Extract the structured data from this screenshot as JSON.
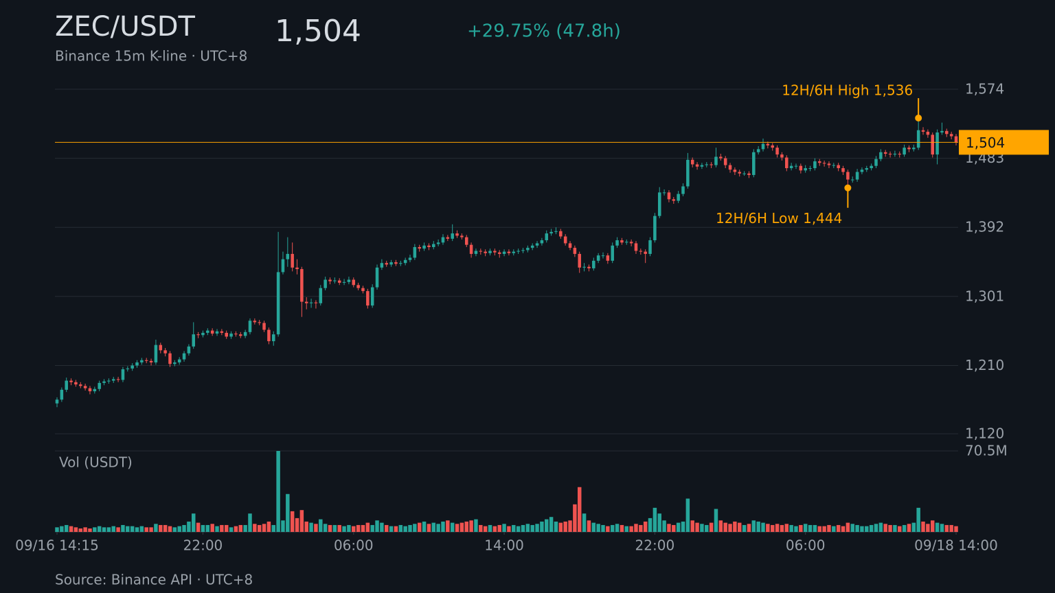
{
  "chart_data": {
    "type": "candlestick",
    "title": "ZEC/USDT",
    "price": {
      "value": 1504,
      "label": "1,504"
    },
    "change": "+29.75% (47.8h)",
    "subtitle": "Binance 15m K-line · UTC+8",
    "source": "Source: Binance API · UTC+8",
    "colors": {
      "up": "#26a69a",
      "down": "#ef5350",
      "accent": "#ffa500"
    },
    "grid": true,
    "ylim": [
      1120,
      1574
    ],
    "yticks": [
      {
        "value": 1120,
        "label": "1,120"
      },
      {
        "value": 1210,
        "label": "1,210"
      },
      {
        "value": 1301,
        "label": "1,301"
      },
      {
        "value": 1392,
        "label": "1,392"
      },
      {
        "value": 1483,
        "label": "1,483"
      },
      {
        "value": 1574,
        "label": "1,574"
      }
    ],
    "xlim": [
      0,
      191
    ],
    "xticks": [
      {
        "value": 0,
        "label": "09/16 14:15"
      },
      {
        "value": 31,
        "label": "22:00"
      },
      {
        "value": 63,
        "label": "06:00"
      },
      {
        "value": 95,
        "label": "14:00"
      },
      {
        "value": 127,
        "label": "22:00"
      },
      {
        "value": 159,
        "label": "06:00"
      },
      {
        "value": 191,
        "label": "09/18 14:00"
      }
    ],
    "y2lim": [
      0,
      70.5
    ],
    "y2ticks": [
      {
        "value": 70.5,
        "label": "70.5M"
      }
    ],
    "annotations": [
      {
        "x": 183,
        "value": 1536,
        "label": "12H/6H High 1,536"
      },
      {
        "x": 168,
        "value": 1444,
        "label": "12H/6H Low 1,444"
      }
    ],
    "candles": [
      [
        1160,
        1168,
        1155,
        1165
      ],
      [
        1165,
        1181,
        1162,
        1178
      ],
      [
        1178,
        1194,
        1175,
        1190
      ],
      [
        1190,
        1193,
        1184,
        1188
      ],
      [
        1188,
        1191,
        1182,
        1185
      ],
      [
        1185,
        1188,
        1180,
        1183
      ],
      [
        1183,
        1186,
        1177,
        1180
      ],
      [
        1180,
        1183,
        1172,
        1176
      ],
      [
        1176,
        1182,
        1173,
        1179
      ],
      [
        1179,
        1190,
        1176,
        1187
      ],
      [
        1187,
        1192,
        1184,
        1189
      ],
      [
        1189,
        1193,
        1186,
        1190
      ],
      [
        1190,
        1195,
        1187,
        1192
      ],
      [
        1192,
        1195,
        1188,
        1191
      ],
      [
        1191,
        1208,
        1188,
        1205
      ],
      [
        1205,
        1209,
        1202,
        1206
      ],
      [
        1206,
        1213,
        1203,
        1210
      ],
      [
        1210,
        1217,
        1207,
        1214
      ],
      [
        1214,
        1220,
        1211,
        1217
      ],
      [
        1217,
        1220,
        1213,
        1216
      ],
      [
        1216,
        1219,
        1210,
        1214
      ],
      [
        1214,
        1244,
        1211,
        1237
      ],
      [
        1237,
        1240,
        1226,
        1230
      ],
      [
        1230,
        1233,
        1222,
        1226
      ],
      [
        1226,
        1229,
        1208,
        1212
      ],
      [
        1212,
        1217,
        1209,
        1214
      ],
      [
        1214,
        1221,
        1211,
        1218
      ],
      [
        1218,
        1229,
        1215,
        1226
      ],
      [
        1226,
        1238,
        1223,
        1235
      ],
      [
        1235,
        1267,
        1232,
        1251
      ],
      [
        1251,
        1254,
        1246,
        1250
      ],
      [
        1250,
        1256,
        1247,
        1253
      ],
      [
        1253,
        1259,
        1250,
        1256
      ],
      [
        1256,
        1259,
        1249,
        1252
      ],
      [
        1252,
        1258,
        1249,
        1255
      ],
      [
        1255,
        1258,
        1250,
        1253
      ],
      [
        1253,
        1256,
        1245,
        1248
      ],
      [
        1248,
        1255,
        1245,
        1252
      ],
      [
        1252,
        1255,
        1248,
        1251
      ],
      [
        1251,
        1254,
        1246,
        1249
      ],
      [
        1249,
        1257,
        1246,
        1254
      ],
      [
        1254,
        1272,
        1251,
        1269
      ],
      [
        1269,
        1272,
        1264,
        1267
      ],
      [
        1267,
        1270,
        1263,
        1266
      ],
      [
        1266,
        1269,
        1254,
        1257
      ],
      [
        1257,
        1260,
        1238,
        1242
      ],
      [
        1242,
        1255,
        1236,
        1251
      ],
      [
        1251,
        1386,
        1248,
        1333
      ],
      [
        1333,
        1360,
        1330,
        1350
      ],
      [
        1350,
        1379,
        1340,
        1357
      ],
      [
        1357,
        1372,
        1334,
        1339
      ],
      [
        1339,
        1350,
        1330,
        1337
      ],
      [
        1337,
        1340,
        1274,
        1294
      ],
      [
        1294,
        1300,
        1284,
        1292
      ],
      [
        1292,
        1298,
        1286,
        1293
      ],
      [
        1293,
        1296,
        1285,
        1292
      ],
      [
        1292,
        1316,
        1289,
        1312
      ],
      [
        1312,
        1327,
        1309,
        1323
      ],
      [
        1323,
        1326,
        1317,
        1321
      ],
      [
        1321,
        1326,
        1318,
        1322
      ],
      [
        1322,
        1325,
        1316,
        1319
      ],
      [
        1319,
        1324,
        1316,
        1320
      ],
      [
        1320,
        1327,
        1317,
        1323
      ],
      [
        1323,
        1326,
        1313,
        1316
      ],
      [
        1316,
        1319,
        1309,
        1312
      ],
      [
        1312,
        1315,
        1305,
        1308
      ],
      [
        1308,
        1311,
        1285,
        1289
      ],
      [
        1289,
        1317,
        1286,
        1313
      ],
      [
        1313,
        1343,
        1310,
        1339
      ],
      [
        1339,
        1350,
        1336,
        1345
      ],
      [
        1345,
        1348,
        1340,
        1343
      ],
      [
        1343,
        1349,
        1340,
        1346
      ],
      [
        1346,
        1349,
        1341,
        1344
      ],
      [
        1344,
        1348,
        1341,
        1345
      ],
      [
        1345,
        1352,
        1342,
        1349
      ],
      [
        1349,
        1356,
        1346,
        1352
      ],
      [
        1352,
        1370,
        1349,
        1366
      ],
      [
        1366,
        1369,
        1360,
        1364
      ],
      [
        1364,
        1372,
        1361,
        1368
      ],
      [
        1368,
        1371,
        1362,
        1366
      ],
      [
        1366,
        1374,
        1363,
        1370
      ],
      [
        1370,
        1376,
        1367,
        1372
      ],
      [
        1372,
        1383,
        1369,
        1379
      ],
      [
        1379,
        1382,
        1374,
        1377
      ],
      [
        1377,
        1396,
        1374,
        1384
      ],
      [
        1384,
        1388,
        1378,
        1381
      ],
      [
        1381,
        1384,
        1376,
        1379
      ],
      [
        1379,
        1382,
        1366,
        1369
      ],
      [
        1369,
        1372,
        1352,
        1357
      ],
      [
        1357,
        1364,
        1354,
        1361
      ],
      [
        1361,
        1364,
        1356,
        1360
      ],
      [
        1360,
        1363,
        1354,
        1358
      ],
      [
        1358,
        1364,
        1355,
        1361
      ],
      [
        1361,
        1364,
        1355,
        1359
      ],
      [
        1359,
        1362,
        1352,
        1357
      ],
      [
        1357,
        1363,
        1354,
        1360
      ],
      [
        1360,
        1363,
        1355,
        1358
      ],
      [
        1358,
        1363,
        1355,
        1360
      ],
      [
        1360,
        1364,
        1357,
        1361
      ],
      [
        1361,
        1365,
        1358,
        1362
      ],
      [
        1362,
        1368,
        1359,
        1365
      ],
      [
        1365,
        1371,
        1362,
        1368
      ],
      [
        1368,
        1374,
        1365,
        1371
      ],
      [
        1371,
        1378,
        1368,
        1375
      ],
      [
        1375,
        1388,
        1372,
        1384
      ],
      [
        1384,
        1390,
        1381,
        1386
      ],
      [
        1386,
        1392,
        1383,
        1387
      ],
      [
        1387,
        1390,
        1377,
        1380
      ],
      [
        1380,
        1383,
        1368,
        1371
      ],
      [
        1371,
        1374,
        1362,
        1365
      ],
      [
        1365,
        1368,
        1353,
        1357
      ],
      [
        1357,
        1360,
        1332,
        1339
      ],
      [
        1339,
        1345,
        1334,
        1340
      ],
      [
        1340,
        1343,
        1334,
        1338
      ],
      [
        1338,
        1352,
        1335,
        1348
      ],
      [
        1348,
        1358,
        1345,
        1355
      ],
      [
        1355,
        1359,
        1351,
        1355
      ],
      [
        1355,
        1358,
        1344,
        1348
      ],
      [
        1348,
        1372,
        1345,
        1368
      ],
      [
        1368,
        1379,
        1365,
        1375
      ],
      [
        1375,
        1378,
        1369,
        1372
      ],
      [
        1372,
        1376,
        1369,
        1373
      ],
      [
        1373,
        1376,
        1367,
        1371
      ],
      [
        1371,
        1374,
        1357,
        1361
      ],
      [
        1361,
        1364,
        1356,
        1360
      ],
      [
        1360,
        1363,
        1345,
        1357
      ],
      [
        1357,
        1379,
        1354,
        1375
      ],
      [
        1375,
        1411,
        1372,
        1407
      ],
      [
        1407,
        1445,
        1404,
        1438
      ],
      [
        1438,
        1442,
        1434,
        1438
      ],
      [
        1438,
        1441,
        1425,
        1429
      ],
      [
        1429,
        1432,
        1423,
        1427
      ],
      [
        1427,
        1440,
        1424,
        1436
      ],
      [
        1436,
        1450,
        1433,
        1446
      ],
      [
        1446,
        1490,
        1443,
        1481
      ],
      [
        1481,
        1484,
        1471,
        1475
      ],
      [
        1475,
        1478,
        1468,
        1472
      ],
      [
        1472,
        1477,
        1469,
        1474
      ],
      [
        1474,
        1478,
        1471,
        1475
      ],
      [
        1475,
        1478,
        1470,
        1474
      ],
      [
        1474,
        1497,
        1471,
        1485
      ],
      [
        1485,
        1489,
        1480,
        1483
      ],
      [
        1483,
        1486,
        1470,
        1474
      ],
      [
        1474,
        1477,
        1464,
        1468
      ],
      [
        1468,
        1471,
        1461,
        1465
      ],
      [
        1465,
        1468,
        1459,
        1463
      ],
      [
        1463,
        1466,
        1460,
        1463
      ],
      [
        1463,
        1466,
        1457,
        1461
      ],
      [
        1461,
        1495,
        1458,
        1491
      ],
      [
        1491,
        1499,
        1488,
        1495
      ],
      [
        1495,
        1509,
        1492,
        1502
      ],
      [
        1502,
        1505,
        1496,
        1500
      ],
      [
        1500,
        1503,
        1493,
        1497
      ],
      [
        1497,
        1500,
        1484,
        1488
      ],
      [
        1488,
        1491,
        1480,
        1484
      ],
      [
        1484,
        1487,
        1466,
        1470
      ],
      [
        1470,
        1477,
        1467,
        1473
      ],
      [
        1473,
        1476,
        1469,
        1473
      ],
      [
        1473,
        1476,
        1463,
        1467
      ],
      [
        1467,
        1474,
        1464,
        1470
      ],
      [
        1470,
        1473,
        1466,
        1470
      ],
      [
        1470,
        1483,
        1467,
        1479
      ],
      [
        1479,
        1482,
        1473,
        1477
      ],
      [
        1477,
        1480,
        1472,
        1476
      ],
      [
        1476,
        1479,
        1470,
        1474
      ],
      [
        1474,
        1477,
        1470,
        1474
      ],
      [
        1474,
        1477,
        1466,
        1470
      ],
      [
        1470,
        1473,
        1461,
        1465
      ],
      [
        1465,
        1468,
        1444,
        1455
      ],
      [
        1455,
        1459,
        1451,
        1455
      ],
      [
        1455,
        1469,
        1452,
        1465
      ],
      [
        1465,
        1471,
        1462,
        1468
      ],
      [
        1468,
        1473,
        1465,
        1470
      ],
      [
        1470,
        1476,
        1467,
        1473
      ],
      [
        1473,
        1486,
        1470,
        1482
      ],
      [
        1482,
        1495,
        1479,
        1491
      ],
      [
        1491,
        1494,
        1485,
        1489
      ],
      [
        1489,
        1492,
        1484,
        1488
      ],
      [
        1488,
        1493,
        1485,
        1489
      ],
      [
        1489,
        1492,
        1484,
        1488
      ],
      [
        1488,
        1501,
        1485,
        1497
      ],
      [
        1497,
        1500,
        1491,
        1495
      ],
      [
        1495,
        1501,
        1492,
        1497
      ],
      [
        1497,
        1536,
        1494,
        1520
      ],
      [
        1520,
        1524,
        1514,
        1518
      ],
      [
        1518,
        1521,
        1510,
        1514
      ],
      [
        1514,
        1517,
        1484,
        1488
      ],
      [
        1488,
        1521,
        1475,
        1517
      ],
      [
        1517,
        1530,
        1514,
        1519
      ],
      [
        1519,
        1522,
        1511,
        1515
      ],
      [
        1515,
        1518,
        1508,
        1512
      ],
      [
        1512,
        1515,
        1500,
        1504
      ]
    ],
    "volume": {
      "name": "Vol (USDT)",
      "values": [
        4,
        5,
        6,
        5,
        4,
        3,
        4,
        3,
        4,
        5,
        4,
        4,
        5,
        4,
        6,
        5,
        5,
        4,
        5,
        4,
        4,
        7,
        6,
        6,
        5,
        4,
        5,
        6,
        9,
        16,
        8,
        6,
        6,
        7,
        5,
        6,
        6,
        4,
        5,
        6,
        6,
        16,
        7,
        6,
        7,
        9,
        6,
        70.5,
        10,
        33,
        18,
        12,
        19,
        9,
        8,
        7,
        11,
        7,
        6,
        6,
        6,
        5,
        6,
        5,
        6,
        6,
        8,
        6,
        10,
        8,
        6,
        5,
        5,
        6,
        5,
        6,
        7,
        8,
        9,
        7,
        8,
        7,
        9,
        10,
        8,
        7,
        8,
        9,
        10,
        11,
        6,
        5,
        6,
        5,
        6,
        7,
        5,
        6,
        5,
        6,
        7,
        6,
        7,
        9,
        11,
        13,
        9,
        8,
        9,
        10,
        24,
        39,
        16,
        10,
        8,
        7,
        6,
        5,
        6,
        7,
        6,
        5,
        5,
        7,
        6,
        9,
        12,
        21,
        16,
        10,
        7,
        6,
        8,
        9,
        29,
        10,
        8,
        7,
        6,
        8,
        20,
        10,
        8,
        7,
        9,
        8,
        6,
        7,
        10,
        9,
        8,
        7,
        6,
        7,
        6,
        7,
        6,
        5,
        6,
        7,
        6,
        6,
        5,
        5,
        6,
        5,
        6,
        5,
        8,
        7,
        6,
        5,
        5,
        6,
        7,
        8,
        7,
        6,
        6,
        5,
        6,
        7,
        8,
        21,
        9,
        7,
        10,
        8,
        7,
        6,
        6,
        5
      ]
    }
  }
}
